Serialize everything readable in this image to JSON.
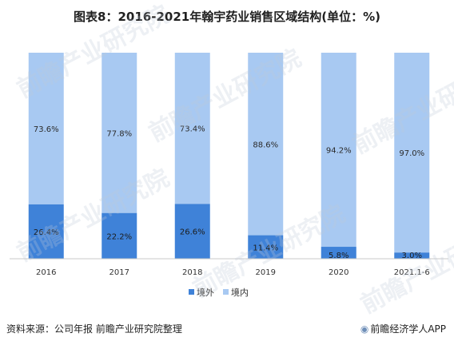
{
  "title": "图表8：2016-2021年翰宇药业销售区域结构(单位：%)",
  "source": "资料来源：公司年报 前瞻产业研究院整理",
  "brand": "前瞻经济学人APP",
  "watermark_text": "前瞻产业研究院",
  "colors": {
    "domestic_overseas": "#3f82d8",
    "domestic": "#a8c9f2",
    "axis": "#c9c9c9"
  },
  "chart_data": {
    "type": "bar",
    "stacked": true,
    "title": "图表8：2016-2021年翰宇药业销售区域结构(单位：%)",
    "categories": [
      "2016",
      "2017",
      "2018",
      "2019",
      "2020",
      "2021.1-6"
    ],
    "series": [
      {
        "name": "境外",
        "values": [
          26.4,
          22.2,
          26.6,
          11.4,
          5.8,
          3.0
        ],
        "labels": [
          "26.4%",
          "22.2%",
          "26.6%",
          "11.4%",
          "5.8%",
          "3.0%"
        ]
      },
      {
        "name": "境内",
        "values": [
          73.6,
          77.8,
          73.4,
          88.6,
          94.2,
          97.0
        ],
        "labels": [
          "73.6%",
          "77.8%",
          "73.4%",
          "88.6%",
          "94.2%",
          "97.0%"
        ]
      }
    ],
    "ylim": [
      0,
      100
    ],
    "grid": false,
    "legend_position": "bottom"
  }
}
